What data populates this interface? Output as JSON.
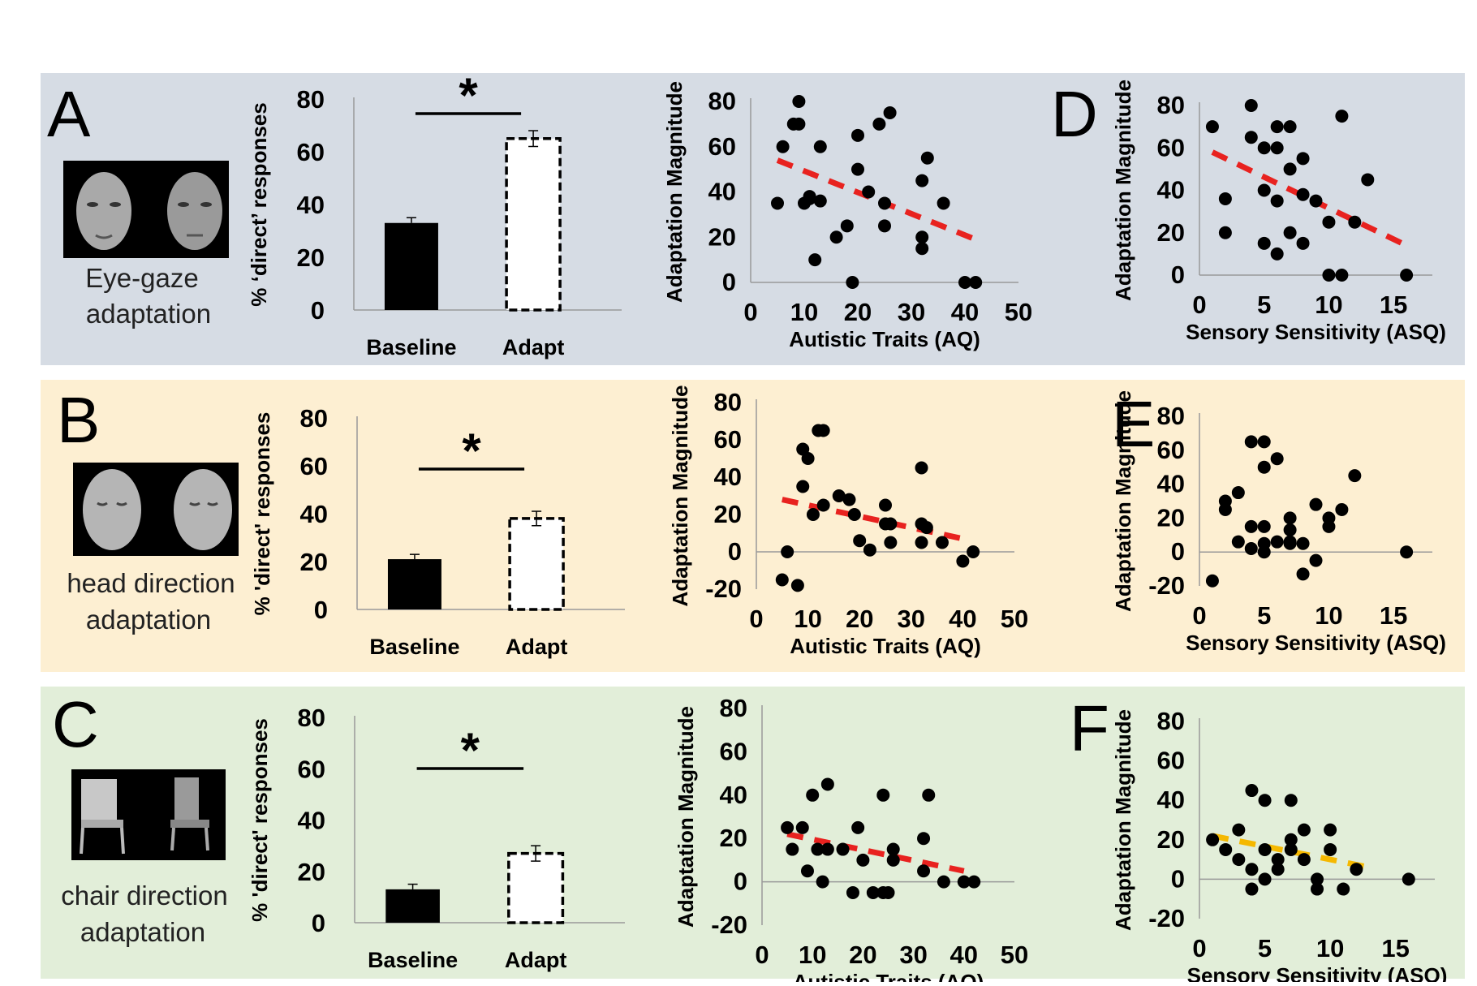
{
  "colors": {
    "row_a_bg": "#d6dce4",
    "row_b_bg": "#fdefd2",
    "row_c_bg": "#e2eed9",
    "trend_red": "#e8221f",
    "trend_orange": "#f5b800",
    "baseline_bar": "#000000",
    "adapt_bar": "#ffffff"
  },
  "rows": [
    {
      "letter": "A",
      "scatter_letter": "D",
      "caption_lines": [
        "Eye-gaze",
        "adaptation"
      ],
      "thumbnail_icons": [
        "female-face-icon",
        "male-face-icon"
      ]
    },
    {
      "letter": "B",
      "scatter_letter": "E",
      "caption_lines": [
        "head direction",
        "adaptation"
      ],
      "thumbnail_icons": [
        "head-turned-left-icon",
        "head-turned-right-icon"
      ]
    },
    {
      "letter": "C",
      "scatter_letter": "F",
      "caption_lines": [
        "chair direction",
        "adaptation"
      ],
      "thumbnail_icons": [
        "chair-icon",
        "chair-angled-icon"
      ]
    }
  ],
  "chart_data": [
    {
      "panel": "A",
      "type": "bar",
      "categories": [
        "Baseline",
        "Adapt"
      ],
      "values": [
        33,
        65
      ],
      "errors": [
        2,
        3
      ],
      "ylabel": "% ‘direct’ responses",
      "ylim": [
        0,
        80
      ],
      "yticks": [
        "0",
        "20",
        "40",
        "60",
        "80"
      ],
      "significance": "*"
    },
    {
      "panel": "A",
      "type": "scatter",
      "xlabel": "Autistic Traits (AQ)",
      "ylabel": "Adaptation Magnitude",
      "xlim": [
        0,
        50
      ],
      "ylim": [
        0,
        80
      ],
      "xticks": [
        "0",
        "10",
        "20",
        "30",
        "40",
        "50"
      ],
      "yticks": [
        "0",
        "20",
        "40",
        "60",
        "80"
      ],
      "points": [
        [
          5,
          35
        ],
        [
          6,
          60
        ],
        [
          8,
          70
        ],
        [
          9,
          80
        ],
        [
          9,
          70
        ],
        [
          10,
          35
        ],
        [
          11,
          38
        ],
        [
          11,
          37
        ],
        [
          12,
          10
        ],
        [
          13,
          60
        ],
        [
          13,
          36
        ],
        [
          16,
          20
        ],
        [
          18,
          25
        ],
        [
          19,
          0
        ],
        [
          20,
          65
        ],
        [
          20,
          50
        ],
        [
          22,
          40
        ],
        [
          24,
          70
        ],
        [
          25,
          35
        ],
        [
          25,
          25
        ],
        [
          26,
          75
        ],
        [
          32,
          45
        ],
        [
          32,
          20
        ],
        [
          32,
          15
        ],
        [
          33,
          55
        ],
        [
          36,
          35
        ],
        [
          40,
          0
        ],
        [
          42,
          0
        ]
      ],
      "trend": {
        "x": [
          5,
          42
        ],
        "y": [
          54,
          19
        ],
        "color": "#e8221f"
      }
    },
    {
      "panel": "D",
      "type": "scatter",
      "xlabel": "Sensory Sensitivity (ASQ)",
      "ylabel": "Adaptation Magnitude",
      "xlim": [
        0,
        18
      ],
      "ylim": [
        0,
        80
      ],
      "xticks": [
        "0",
        "5",
        "10",
        "15"
      ],
      "yticks": [
        "0",
        "20",
        "40",
        "60",
        "80"
      ],
      "points": [
        [
          1,
          70
        ],
        [
          2,
          36
        ],
        [
          2,
          20
        ],
        [
          4,
          80
        ],
        [
          4,
          65
        ],
        [
          5,
          60
        ],
        [
          5,
          40
        ],
        [
          5,
          15
        ],
        [
          6,
          70
        ],
        [
          6,
          60
        ],
        [
          6,
          35
        ],
        [
          6,
          10
        ],
        [
          7,
          70
        ],
        [
          7,
          50
        ],
        [
          7,
          20
        ],
        [
          8,
          55
        ],
        [
          8,
          38
        ],
        [
          8,
          15
        ],
        [
          9,
          35
        ],
        [
          10,
          25
        ],
        [
          10,
          0
        ],
        [
          11,
          75
        ],
        [
          11,
          0
        ],
        [
          12,
          25
        ],
        [
          13,
          45
        ],
        [
          16,
          0
        ]
      ],
      "trend": {
        "x": [
          1,
          16
        ],
        "y": [
          58,
          14
        ],
        "color": "#e8221f"
      }
    },
    {
      "panel": "B",
      "type": "bar",
      "categories": [
        "Baseline",
        "Adapt"
      ],
      "values": [
        21,
        38
      ],
      "errors": [
        2,
        3
      ],
      "ylabel": "% 'direct' responses",
      "ylim": [
        0,
        80
      ],
      "yticks": [
        "0",
        "20",
        "40",
        "60",
        "80"
      ],
      "significance": "*"
    },
    {
      "panel": "B",
      "type": "scatter",
      "xlabel": "Autistic Traits (AQ)",
      "ylabel": "Adaptation Magnitude",
      "xlim": [
        0,
        50
      ],
      "ylim": [
        -20,
        80
      ],
      "xticks": [
        "0",
        "10",
        "20",
        "30",
        "40",
        "50"
      ],
      "yticks": [
        "-20",
        "0",
        "20",
        "40",
        "60",
        "80"
      ],
      "points": [
        [
          5,
          -15
        ],
        [
          6,
          0
        ],
        [
          8,
          -18
        ],
        [
          9,
          55
        ],
        [
          9,
          35
        ],
        [
          10,
          50
        ],
        [
          11,
          20
        ],
        [
          12,
          65
        ],
        [
          13,
          65
        ],
        [
          13,
          25
        ],
        [
          16,
          30
        ],
        [
          18,
          28
        ],
        [
          19,
          20
        ],
        [
          20,
          6
        ],
        [
          22,
          1
        ],
        [
          25,
          15
        ],
        [
          25,
          25
        ],
        [
          26,
          15
        ],
        [
          26,
          5
        ],
        [
          32,
          45
        ],
        [
          32,
          15
        ],
        [
          32,
          5
        ],
        [
          33,
          13
        ],
        [
          36,
          5
        ],
        [
          40,
          -5
        ],
        [
          42,
          0
        ]
      ],
      "trend": {
        "x": [
          5,
          40
        ],
        "y": [
          28,
          7
        ],
        "color": "#e8221f"
      }
    },
    {
      "panel": "E",
      "type": "scatter",
      "xlabel": "Sensory Sensitivity (ASQ)",
      "ylabel": "Adaptation Magnitude",
      "xlim": [
        0,
        18
      ],
      "ylim": [
        -20,
        80
      ],
      "xticks": [
        "0",
        "5",
        "10",
        "15"
      ],
      "yticks": [
        "-20",
        "0",
        "20",
        "40",
        "60",
        "80"
      ],
      "points": [
        [
          1,
          -17
        ],
        [
          2,
          30
        ],
        [
          2,
          25
        ],
        [
          3,
          35
        ],
        [
          3,
          6
        ],
        [
          4,
          65
        ],
        [
          4,
          15
        ],
        [
          4,
          2
        ],
        [
          5,
          65
        ],
        [
          5,
          50
        ],
        [
          5,
          15
        ],
        [
          5,
          0
        ],
        [
          5,
          5
        ],
        [
          6,
          55
        ],
        [
          6,
          6
        ],
        [
          7,
          6
        ],
        [
          7,
          5
        ],
        [
          7,
          20
        ],
        [
          7,
          13
        ],
        [
          8,
          5
        ],
        [
          8,
          -13
        ],
        [
          9,
          28
        ],
        [
          9,
          -5
        ],
        [
          10,
          20
        ],
        [
          10,
          15
        ],
        [
          11,
          25
        ],
        [
          12,
          45
        ],
        [
          16,
          0
        ]
      ],
      "trend": null
    },
    {
      "panel": "C",
      "type": "bar",
      "categories": [
        "Baseline",
        "Adapt"
      ],
      "values": [
        13,
        27
      ],
      "errors": [
        2,
        3
      ],
      "ylabel": "% 'direct' responses",
      "ylim": [
        0,
        80
      ],
      "yticks": [
        "0",
        "20",
        "40",
        "60",
        "80"
      ],
      "significance": "*"
    },
    {
      "panel": "C",
      "type": "scatter",
      "xlabel": "Autistic Traits (AQ)",
      "ylabel": "Adaptation Magnitude",
      "xlim": [
        0,
        50
      ],
      "ylim": [
        -20,
        80
      ],
      "xticks": [
        "0",
        "10",
        "20",
        "30",
        "40",
        "50"
      ],
      "yticks": [
        "-20",
        "0",
        "20",
        "40",
        "60",
        "80"
      ],
      "points": [
        [
          5,
          25
        ],
        [
          6,
          15
        ],
        [
          8,
          25
        ],
        [
          9,
          5
        ],
        [
          10,
          40
        ],
        [
          11,
          15
        ],
        [
          12,
          0
        ],
        [
          13,
          45
        ],
        [
          13,
          15
        ],
        [
          16,
          15
        ],
        [
          18,
          -5
        ],
        [
          19,
          25
        ],
        [
          20,
          10
        ],
        [
          22,
          -5
        ],
        [
          24,
          -5
        ],
        [
          24,
          40
        ],
        [
          25,
          -5
        ],
        [
          26,
          15
        ],
        [
          26,
          10
        ],
        [
          32,
          20
        ],
        [
          32,
          5
        ],
        [
          33,
          40
        ],
        [
          36,
          0
        ],
        [
          40,
          0
        ],
        [
          42,
          0
        ]
      ],
      "trend": {
        "x": [
          5,
          40
        ],
        "y": [
          22,
          5
        ],
        "color": "#e8221f"
      }
    },
    {
      "panel": "F",
      "type": "scatter",
      "xlabel": "Sensory Sensitivity (ASQ)",
      "ylabel": "Adaptation Magnitude",
      "xlim": [
        0,
        18
      ],
      "ylim": [
        -20,
        80
      ],
      "xticks": [
        "0",
        "5",
        "10",
        "15"
      ],
      "yticks": [
        "-20",
        "0",
        "20",
        "40",
        "60",
        "80"
      ],
      "points": [
        [
          1,
          20
        ],
        [
          2,
          15
        ],
        [
          3,
          25
        ],
        [
          3,
          10
        ],
        [
          4,
          45
        ],
        [
          4,
          5
        ],
        [
          4,
          -5
        ],
        [
          5,
          40
        ],
        [
          5,
          15
        ],
        [
          5,
          0
        ],
        [
          6,
          10
        ],
        [
          6,
          5
        ],
        [
          7,
          40
        ],
        [
          7,
          20
        ],
        [
          7,
          15
        ],
        [
          8,
          25
        ],
        [
          8,
          10
        ],
        [
          9,
          0
        ],
        [
          9,
          -5
        ],
        [
          10,
          15
        ],
        [
          10,
          25
        ],
        [
          11,
          -5
        ],
        [
          12,
          5
        ],
        [
          16,
          0
        ]
      ],
      "trend": {
        "x": [
          1,
          13
        ],
        "y": [
          22,
          6
        ],
        "color": "#f5b800"
      }
    }
  ]
}
